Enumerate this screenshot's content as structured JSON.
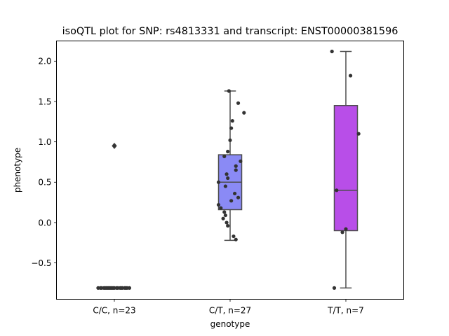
{
  "chart_data": {
    "type": "box",
    "title": "isoQTL plot for SNP: rs4813331 and transcript: ENST00000381596",
    "xlabel": "genotype",
    "ylabel": "phenotype",
    "ylim": [
      -0.95,
      2.25
    ],
    "yticks": [
      -0.5,
      0.0,
      0.5,
      1.0,
      1.5,
      2.0
    ],
    "ytick_labels": [
      "−0.5",
      "0.0",
      "0.5",
      "1.0",
      "1.5",
      "2.0"
    ],
    "categories": [
      "C/C, n=23",
      "C/T, n=27",
      "T/T, n=7"
    ],
    "grid": false,
    "boxes": [
      {
        "category": "C/C, n=23",
        "color": "#7070e0",
        "q1": -0.81,
        "median": -0.81,
        "q3": -0.81,
        "whisker_low": -0.81,
        "whisker_high": -0.81,
        "outliers": [
          0.95
        ]
      },
      {
        "category": "C/T, n=27",
        "color": "#8a8af5",
        "q1": 0.16,
        "median": 0.5,
        "q3": 0.84,
        "whisker_low": -0.22,
        "whisker_high": 1.63,
        "outliers": []
      },
      {
        "category": "T/T, n=7",
        "color": "#b84ee8",
        "q1": -0.1,
        "median": 0.4,
        "q3": 1.45,
        "whisker_low": -0.81,
        "whisker_high": 2.12,
        "outliers": []
      }
    ],
    "points": [
      {
        "category": "C/C, n=23",
        "values": [
          -0.81,
          -0.81,
          -0.81,
          -0.81,
          -0.81,
          -0.81,
          -0.81,
          -0.81,
          -0.81,
          -0.81,
          -0.81,
          -0.81,
          -0.81,
          -0.81,
          -0.81,
          -0.81,
          -0.81,
          -0.81,
          -0.81,
          -0.81,
          -0.81,
          -0.81,
          0.95
        ],
        "jitter": [
          -0.14,
          -0.12,
          -0.11,
          -0.09,
          -0.08,
          -0.07,
          -0.06,
          -0.05,
          -0.04,
          -0.03,
          -0.02,
          -0.01,
          0.0,
          0.02,
          0.03,
          0.05,
          0.06,
          0.07,
          0.09,
          0.1,
          0.11,
          0.13,
          0.0
        ]
      },
      {
        "category": "C/T, n=27",
        "values": [
          1.63,
          1.48,
          1.36,
          1.26,
          1.17,
          1.02,
          0.88,
          0.82,
          0.76,
          0.7,
          0.65,
          0.6,
          0.55,
          0.5,
          0.45,
          0.36,
          0.31,
          0.27,
          0.22,
          0.18,
          0.13,
          0.09,
          0.05,
          0.0,
          -0.04,
          -0.17,
          -0.21
        ],
        "jitter": [
          -0.01,
          0.07,
          0.12,
          0.02,
          0.01,
          0.0,
          -0.02,
          -0.05,
          0.09,
          0.05,
          0.05,
          -0.03,
          -0.02,
          -0.1,
          -0.04,
          0.04,
          0.07,
          0.01,
          -0.1,
          -0.08,
          -0.05,
          -0.04,
          -0.06,
          -0.03,
          -0.02,
          0.03,
          0.05
        ]
      },
      {
        "category": "T/T, n=7",
        "values": [
          2.12,
          1.82,
          1.1,
          0.4,
          -0.08,
          -0.12,
          -0.81
        ],
        "jitter": [
          -0.12,
          0.04,
          0.11,
          -0.08,
          0.0,
          -0.03,
          -0.1
        ]
      }
    ],
    "colors": {
      "box_edge": "#4d4d4d",
      "point": "#333333",
      "frame": "#000000"
    }
  }
}
